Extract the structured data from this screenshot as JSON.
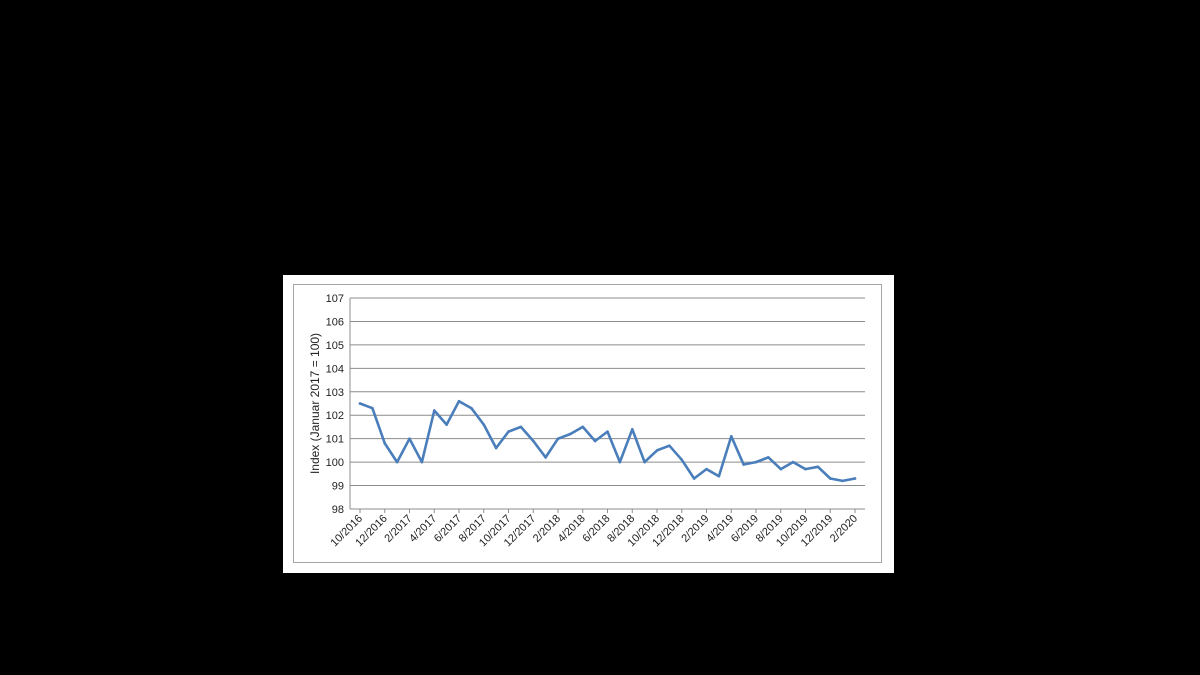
{
  "colors": {
    "page_background": "#000000",
    "panel_background": "#ffffff",
    "gridline": "#8c8c8c",
    "series_line": "#4a7ebb",
    "text": "#222222"
  },
  "chart_data": {
    "type": "line",
    "title": "",
    "xlabel": "",
    "ylabel": "Index (Januar 2017 = 100)",
    "ylim": [
      98,
      107
    ],
    "y_ticks": [
      98,
      99,
      100,
      101,
      102,
      103,
      104,
      105,
      106,
      107
    ],
    "grid": true,
    "legend": "none",
    "x_tick_labels": [
      "10/2016",
      "12/2016",
      "2/2017",
      "4/2017",
      "6/2017",
      "8/2017",
      "10/2017",
      "12/2017",
      "2/2018",
      "4/2018",
      "6/2018",
      "8/2018",
      "10/2018",
      "12/2018",
      "2/2019",
      "4/2019",
      "6/2019",
      "8/2019",
      "10/2019",
      "12/2019",
      "2/2020"
    ],
    "x": [
      "10/2016",
      "11/2016",
      "12/2016",
      "1/2017",
      "2/2017",
      "3/2017",
      "4/2017",
      "5/2017",
      "6/2017",
      "7/2017",
      "8/2017",
      "9/2017",
      "10/2017",
      "11/2017",
      "12/2017",
      "1/2018",
      "2/2018",
      "3/2018",
      "4/2018",
      "5/2018",
      "6/2018",
      "7/2018",
      "8/2018",
      "9/2018",
      "10/2018",
      "11/2018",
      "12/2018",
      "1/2019",
      "2/2019",
      "3/2019",
      "4/2019",
      "5/2019",
      "6/2019",
      "7/2019",
      "8/2019",
      "9/2019",
      "10/2019",
      "11/2019",
      "12/2019",
      "1/2020",
      "2/2020"
    ],
    "series": [
      {
        "values": [
          102.5,
          102.3,
          100.8,
          100.0,
          101.0,
          100.0,
          102.2,
          101.6,
          102.6,
          102.3,
          101.6,
          100.6,
          101.3,
          101.5,
          100.9,
          100.2,
          101.0,
          101.2,
          101.5,
          100.9,
          101.3,
          100.0,
          101.4,
          100.0,
          100.5,
          100.7,
          100.1,
          99.3,
          99.7,
          99.4,
          101.1,
          99.9,
          100.0,
          100.2,
          99.7,
          100.0,
          99.7,
          99.8,
          99.3,
          99.2,
          99.3
        ]
      }
    ]
  }
}
